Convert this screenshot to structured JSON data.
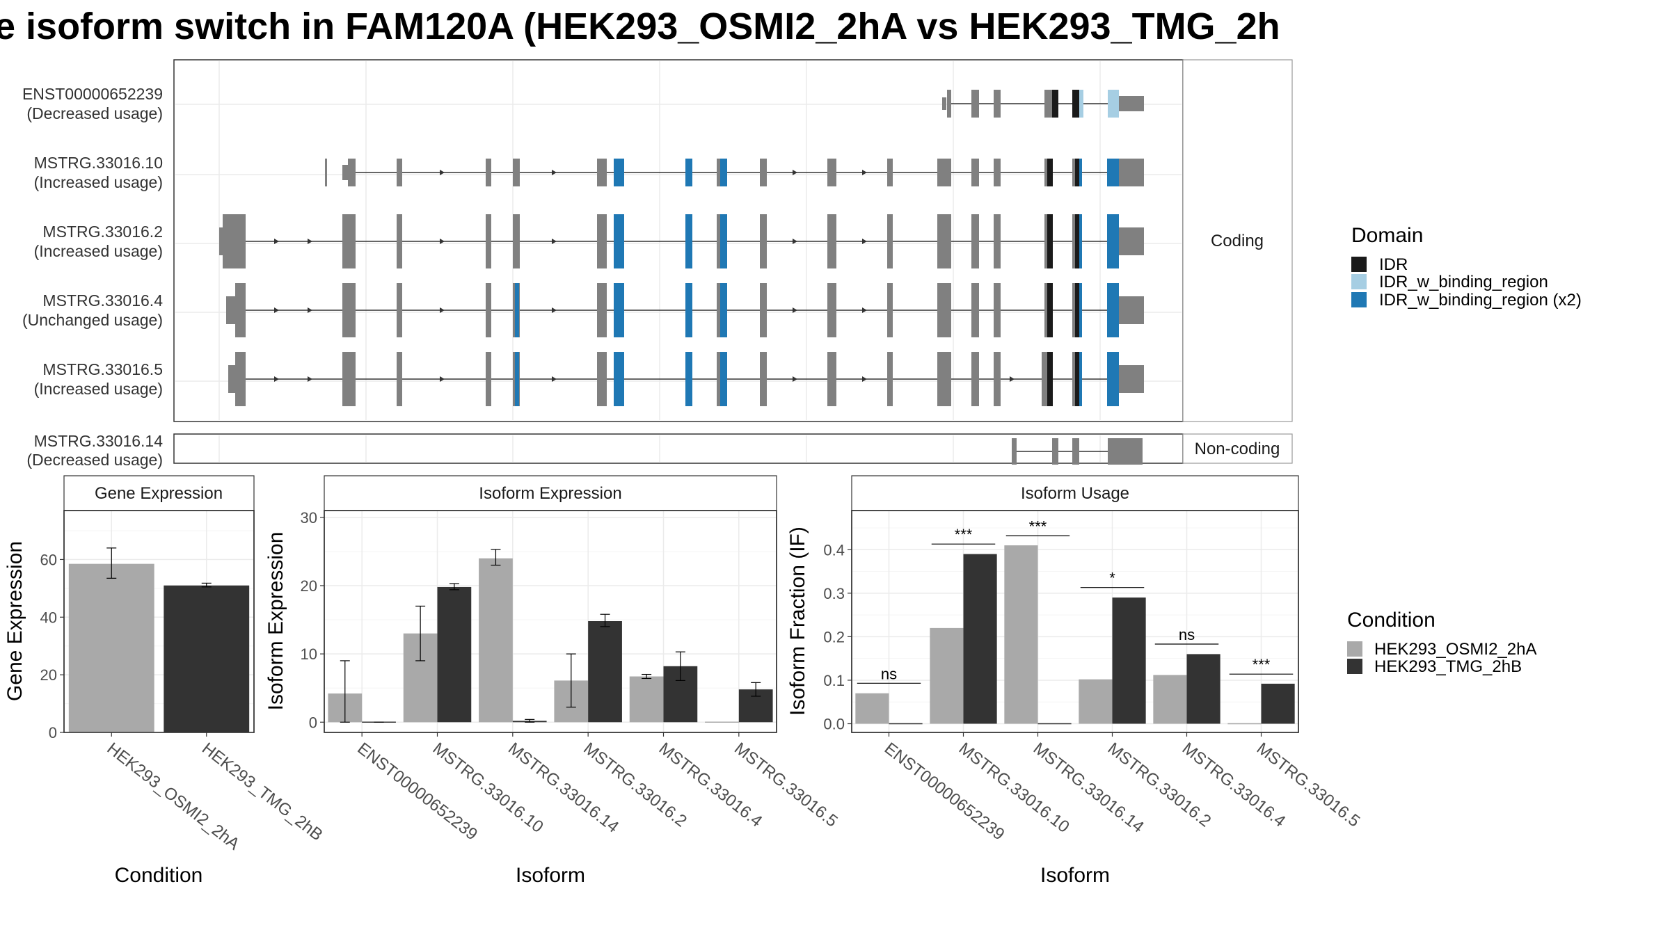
{
  "title": "e isoform switch in FAM120A (HEK293_OSMI2_2hA vs HEK293_TMG_2h",
  "colors": {
    "exon": "#808080",
    "IDR": "#1a1a1a",
    "IDR_w_binding_region": "#a6cee3",
    "IDR_w_binding_region_x2": "#1f78b4",
    "cond_a": "#a9a9a9",
    "cond_b": "#333333"
  },
  "structure": {
    "strips": {
      "coding": "Coding",
      "noncoding": "Non-coding"
    },
    "transcripts": [
      {
        "name": "ENST00000652239",
        "usage": "(Decreased usage)"
      },
      {
        "name": "MSTRG.33016.10",
        "usage": "(Increased usage)"
      },
      {
        "name": "MSTRG.33016.2",
        "usage": "(Increased usage)"
      },
      {
        "name": "MSTRG.33016.4",
        "usage": "(Unchanged usage)"
      },
      {
        "name": "MSTRG.33016.5",
        "usage": "(Increased usage)"
      },
      {
        "name": "MSTRG.33016.14",
        "usage": "(Decreased usage)"
      }
    ]
  },
  "legend_domain": {
    "title": "Domain",
    "items": [
      {
        "label": "IDR",
        "color": "#1a1a1a"
      },
      {
        "label": "IDR_w_binding_region",
        "color": "#a6cee3"
      },
      {
        "label": "IDR_w_binding_region (x2)",
        "color": "#1f78b4"
      }
    ]
  },
  "legend_condition": {
    "title": "Condition",
    "items": [
      {
        "label": "HEK293_OSMI2_2hA",
        "color": "#a9a9a9"
      },
      {
        "label": "HEK293_TMG_2hB",
        "color": "#333333"
      }
    ]
  },
  "chart_data": [
    {
      "type": "bar",
      "strip": "Gene Expression",
      "xlabel": "Condition",
      "ylabel": "Gene Expression",
      "ylim": [
        0,
        77
      ],
      "yticks": [
        0,
        20,
        40,
        60
      ],
      "categories": [
        "HEK293_OSMI2_2hA",
        "HEK293_TMG_2hB"
      ],
      "values": [
        58.5,
        51
      ],
      "errors": [
        [
          53.5,
          64
        ],
        [
          50.5,
          51.8
        ]
      ]
    },
    {
      "type": "bar",
      "strip": "Isoform Expression",
      "xlabel": "Isoform",
      "ylabel": "Isoform Expression",
      "ylim": [
        -1.5,
        31
      ],
      "yticks": [
        0,
        10,
        20,
        30
      ],
      "categories": [
        "ENST00000652239",
        "MSTRG.33016.10",
        "MSTRG.33016.14",
        "MSTRG.33016.2",
        "MSTRG.33016.4",
        "MSTRG.33016.5"
      ],
      "series": [
        {
          "name": "HEK293_OSMI2_2hA",
          "values": [
            4.2,
            13,
            24,
            6.1,
            6.7,
            0
          ],
          "errors": [
            [
              0,
              9
            ],
            [
              9,
              17
            ],
            [
              23,
              25.3
            ],
            [
              2.2,
              10
            ],
            [
              6.4,
              7
            ]
          ]
        },
        {
          "name": "HEK293_TMG_2hB",
          "values": [
            0,
            19.8,
            0.2,
            14.8,
            8.2,
            4.8
          ],
          "errors": [
            [
              0,
              0
            ],
            [
              19.4,
              20.3
            ],
            [
              0,
              0.4
            ],
            [
              14,
              15.8
            ],
            [
              6.1,
              10.3
            ],
            [
              3.8,
              5.8
            ]
          ]
        }
      ]
    },
    {
      "type": "bar",
      "strip": "Isoform Usage",
      "xlabel": "Isoform",
      "ylabel": "Isoform Fraction (IF)",
      "ylim": [
        -0.02,
        0.49
      ],
      "yticks": [
        "0.0",
        "0.1",
        "0.2",
        "0.3",
        "0.4"
      ],
      "categories": [
        "ENST00000652239",
        "MSTRG.33016.10",
        "MSTRG.33016.14",
        "MSTRG.33016.2",
        "MSTRG.33016.4",
        "MSTRG.33016.5"
      ],
      "series": [
        {
          "name": "HEK293_OSMI2_2hA",
          "values": [
            0.07,
            0.22,
            0.41,
            0.102,
            0.112,
            0
          ]
        },
        {
          "name": "HEK293_TMG_2hB",
          "values": [
            0,
            0.39,
            0,
            0.29,
            0.16,
            0.092
          ]
        }
      ],
      "significance": [
        "ns",
        "***",
        "***",
        "*",
        "ns",
        "***"
      ],
      "sig_line_level": [
        0.093,
        0.413,
        0.432,
        0.313,
        0.183,
        0.114
      ]
    }
  ]
}
